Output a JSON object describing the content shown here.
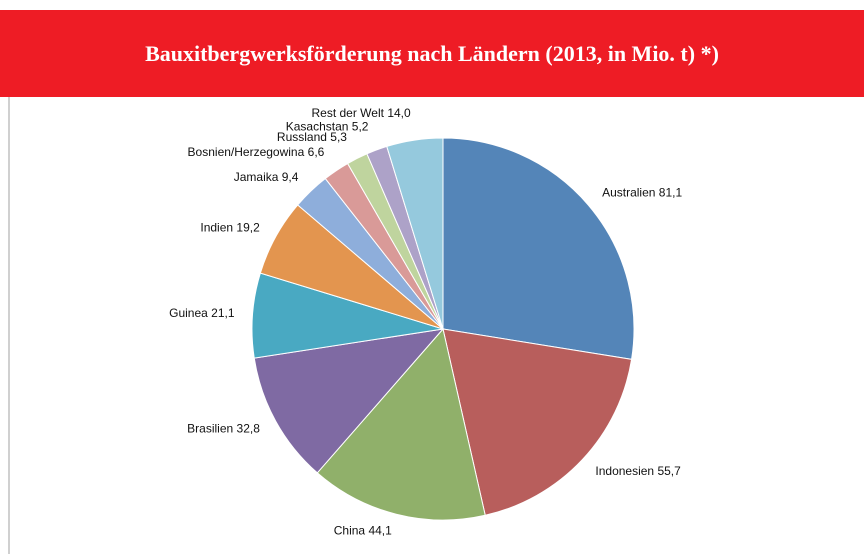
{
  "chart_data": {
    "type": "pie",
    "title": "Bauxitbergwerksförderung nach Ländern (2013, in Mio. t) *)",
    "categories": [
      "Australien",
      "Indonesien",
      "China",
      "Brasilien",
      "Guinea",
      "Indien",
      "Jamaika",
      "Bosnien/Herzegowina",
      "Russland",
      "Kasachstan",
      "Rest der Welt"
    ],
    "values": [
      81.1,
      55.7,
      44.1,
      32.8,
      21.1,
      19.2,
      9.4,
      6.6,
      5.3,
      5.2,
      14.0
    ],
    "value_labels": [
      "81,1",
      "55,7",
      "44,1",
      "32,8",
      "21,1",
      "19,2",
      "9,4",
      "6,6",
      "5,3",
      "5,2",
      "14,0"
    ],
    "colors": [
      "#5485b8",
      "#b85e5c",
      "#90b06a",
      "#7f6aa3",
      "#49a9c2",
      "#e3954f",
      "#8eaedb",
      "#d99a98",
      "#bfd49e",
      "#ada2c8",
      "#95c9dd"
    ]
  }
}
